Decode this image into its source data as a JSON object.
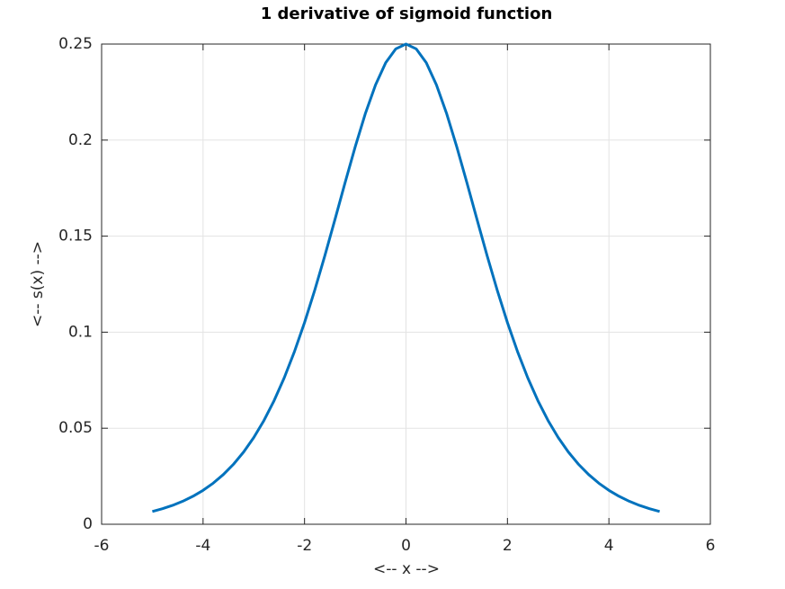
{
  "chart_data": {
    "type": "line",
    "title": "1 derivative of sigmoid function",
    "xlabel": "<-- x -->",
    "ylabel": "<-- s(x) -->",
    "x": [
      -5,
      -4.8,
      -4.6,
      -4.4,
      -4.2,
      -4,
      -3.8,
      -3.6,
      -3.4,
      -3.2,
      -3,
      -2.8,
      -2.6,
      -2.4,
      -2.2,
      -2,
      -1.8,
      -1.6,
      -1.4,
      -1.2,
      -1,
      -0.8,
      -0.6,
      -0.4,
      -0.2,
      0,
      0.2,
      0.4,
      0.6,
      0.8,
      1,
      1.2,
      1.4,
      1.6,
      1.8,
      2,
      2.2,
      2.4,
      2.6,
      2.8,
      3,
      3.2,
      3.4,
      3.6,
      3.8,
      4,
      4.2,
      4.4,
      4.6,
      4.8,
      5
    ],
    "series": [
      {
        "color": "#0072bd",
        "values": [
          0.00665,
          0.00809,
          0.00985,
          0.01198,
          0.01456,
          0.01766,
          0.0214,
          0.02589,
          0.03125,
          0.03763,
          0.04518,
          0.05403,
          0.06436,
          0.07625,
          0.0898,
          0.10499,
          0.12173,
          0.13976,
          0.15869,
          0.1779,
          0.19661,
          0.21391,
          0.22878,
          0.24026,
          0.24752,
          0.25,
          0.24752,
          0.24026,
          0.22878,
          0.21391,
          0.19661,
          0.1779,
          0.15869,
          0.13976,
          0.12173,
          0.10499,
          0.0898,
          0.07625,
          0.06436,
          0.05403,
          0.04518,
          0.03763,
          0.03125,
          0.02589,
          0.0214,
          0.01766,
          0.01456,
          0.01198,
          0.00985,
          0.00809,
          0.00665
        ]
      }
    ],
    "xlim": [
      -6,
      6
    ],
    "xticks": [
      -6,
      -4,
      -2,
      0,
      2,
      4,
      6
    ],
    "ylim": [
      0,
      0.25
    ],
    "yticks": [
      0,
      0.05,
      0.1,
      0.15,
      0.2,
      0.25
    ],
    "grid": true
  }
}
